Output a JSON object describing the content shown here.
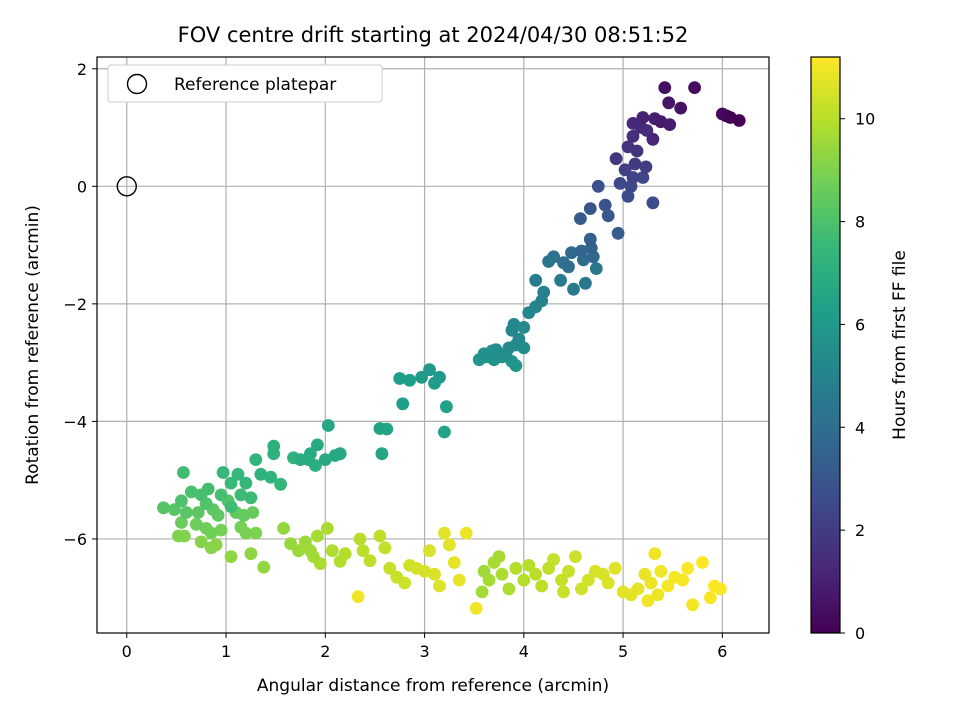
{
  "chart_data": {
    "type": "scatter",
    "title": "FOV centre drift starting at 2024/04/30 08:51:52",
    "xlabel": "Angular distance from reference (arcmin)",
    "ylabel": "Rotation from reference (arcmin)",
    "xlim": [
      -0.3,
      6.47
    ],
    "ylim": [
      -7.6,
      2.2
    ],
    "xticks": [
      0,
      1,
      2,
      3,
      4,
      5,
      6
    ],
    "yticks": [
      -6,
      -4,
      -2,
      0,
      2
    ],
    "grid": true,
    "legend": {
      "placement": "top-left",
      "entries": [
        "Reference platepar"
      ]
    },
    "reference_point": {
      "x": 0,
      "y": 0
    },
    "colorbar": {
      "label": "Hours from first FF file",
      "range": [
        0,
        11.2
      ],
      "ticks": [
        0,
        2,
        4,
        6,
        8,
        10
      ],
      "colormap": "viridis"
    },
    "colormap_stops": [
      "#440154",
      "#482878",
      "#3e4989",
      "#31688e",
      "#26828e",
      "#1f9e89",
      "#35b779",
      "#6ece58",
      "#b5de2b",
      "#fde725"
    ],
    "points": [
      [
        6.17,
        1.12,
        0.0
      ],
      [
        6.08,
        1.17,
        0.08
      ],
      [
        6.04,
        1.2,
        0.15
      ],
      [
        6.0,
        1.23,
        0.22
      ],
      [
        5.72,
        1.68,
        0.35
      ],
      [
        5.42,
        1.68,
        0.45
      ],
      [
        5.58,
        1.33,
        0.55
      ],
      [
        5.46,
        1.42,
        0.65
      ],
      [
        5.38,
        1.1,
        0.75
      ],
      [
        5.47,
        1.05,
        0.85
      ],
      [
        5.32,
        1.15,
        0.95
      ],
      [
        5.2,
        1.17,
        1.05
      ],
      [
        5.3,
        0.8,
        1.15
      ],
      [
        5.1,
        1.07,
        1.25
      ],
      [
        5.18,
        1.0,
        1.35
      ],
      [
        5.24,
        0.95,
        1.45
      ],
      [
        5.1,
        0.85,
        1.55
      ],
      [
        5.14,
        0.6,
        1.65
      ],
      [
        5.05,
        0.67,
        1.75
      ],
      [
        4.93,
        0.47,
        1.85
      ],
      [
        5.12,
        0.38,
        1.95
      ],
      [
        5.23,
        0.33,
        2.05
      ],
      [
        5.02,
        0.28,
        2.15
      ],
      [
        5.1,
        0.15,
        2.25
      ],
      [
        5.2,
        0.15,
        2.35
      ],
      [
        5.08,
        0.0,
        2.45
      ],
      [
        4.97,
        0.05,
        2.5
      ],
      [
        5.05,
        -0.17,
        2.6
      ],
      [
        5.3,
        -0.28,
        2.7
      ],
      [
        4.75,
        0.0,
        2.8
      ],
      [
        4.82,
        -0.32,
        2.9
      ],
      [
        4.67,
        -0.38,
        3.0
      ],
      [
        4.85,
        -0.5,
        3.1
      ],
      [
        4.57,
        -0.55,
        3.2
      ],
      [
        4.95,
        -0.8,
        3.3
      ],
      [
        4.67,
        -0.9,
        3.4
      ],
      [
        4.68,
        -1.05,
        3.5
      ],
      [
        4.58,
        -1.1,
        3.6
      ],
      [
        4.7,
        -1.2,
        3.7
      ],
      [
        4.48,
        -1.13,
        3.8
      ],
      [
        4.6,
        -1.25,
        3.9
      ],
      [
        4.4,
        -1.3,
        4.0
      ],
      [
        4.45,
        -1.37,
        4.1
      ],
      [
        4.3,
        -1.2,
        4.2
      ],
      [
        4.25,
        -1.28,
        4.3
      ],
      [
        4.73,
        -1.4,
        4.4
      ],
      [
        4.62,
        -1.65,
        4.5
      ],
      [
        4.37,
        -1.6,
        4.6
      ],
      [
        4.5,
        -1.75,
        4.7
      ],
      [
        4.12,
        -1.6,
        4.8
      ],
      [
        4.2,
        -1.8,
        4.9
      ],
      [
        4.18,
        -1.95,
        5.0
      ],
      [
        4.12,
        -2.05,
        5.05
      ],
      [
        4.05,
        -2.15,
        5.1
      ],
      [
        3.88,
        -2.45,
        5.15
      ],
      [
        3.9,
        -2.35,
        5.2
      ],
      [
        4.0,
        -2.4,
        5.25
      ],
      [
        3.95,
        -2.6,
        5.3
      ],
      [
        3.92,
        -2.7,
        5.35
      ],
      [
        3.85,
        -2.75,
        5.4
      ],
      [
        4.0,
        -2.75,
        5.45
      ],
      [
        3.82,
        -2.85,
        5.5
      ],
      [
        3.72,
        -2.78,
        5.55
      ],
      [
        3.68,
        -2.8,
        5.6
      ],
      [
        3.6,
        -2.85,
        5.65
      ],
      [
        3.78,
        -2.9,
        5.7
      ],
      [
        3.7,
        -2.95,
        5.75
      ],
      [
        3.55,
        -2.95,
        5.8
      ],
      [
        3.88,
        -2.98,
        5.85
      ],
      [
        3.92,
        -3.05,
        5.9
      ],
      [
        3.62,
        -2.9,
        5.95
      ],
      [
        3.05,
        -3.12,
        6.0
      ],
      [
        3.15,
        -3.25,
        6.05
      ],
      [
        3.1,
        -3.35,
        6.1
      ],
      [
        2.97,
        -3.25,
        6.15
      ],
      [
        2.75,
        -3.27,
        6.2
      ],
      [
        2.85,
        -3.3,
        6.25
      ],
      [
        2.78,
        -3.7,
        6.3
      ],
      [
        3.22,
        -3.75,
        6.35
      ],
      [
        3.2,
        -4.18,
        6.4
      ],
      [
        2.55,
        -4.12,
        6.45
      ],
      [
        2.62,
        -4.13,
        6.5
      ],
      [
        2.57,
        -4.55,
        6.55
      ],
      [
        2.03,
        -4.07,
        6.6
      ],
      [
        2.15,
        -4.55,
        6.65
      ],
      [
        2.1,
        -4.58,
        6.7
      ],
      [
        1.92,
        -4.4,
        6.75
      ],
      [
        2.0,
        -4.65,
        6.8
      ],
      [
        1.85,
        -4.55,
        6.85
      ],
      [
        1.83,
        -4.65,
        6.9
      ],
      [
        1.75,
        -4.65,
        6.95
      ],
      [
        1.9,
        -4.75,
        7.0
      ],
      [
        1.48,
        -4.42,
        7.05
      ],
      [
        1.68,
        -4.62,
        7.1
      ],
      [
        1.48,
        -4.55,
        7.15
      ],
      [
        1.35,
        -4.9,
        7.2
      ],
      [
        1.45,
        -4.95,
        7.25
      ],
      [
        1.3,
        -4.65,
        7.3
      ],
      [
        1.55,
        -5.07,
        7.35
      ],
      [
        1.2,
        -5.05,
        7.4
      ],
      [
        1.12,
        -4.9,
        7.45
      ],
      [
        0.97,
        -4.87,
        7.5
      ],
      [
        1.05,
        -5.05,
        7.55
      ],
      [
        1.25,
        -5.3,
        7.6
      ],
      [
        1.15,
        -5.25,
        7.65
      ],
      [
        1.05,
        -5.45,
        7.7
      ],
      [
        0.57,
        -4.87,
        7.75
      ],
      [
        0.82,
        -5.15,
        7.8
      ],
      [
        0.95,
        -5.25,
        7.85
      ],
      [
        0.75,
        -5.25,
        7.9
      ],
      [
        0.65,
        -5.2,
        7.95
      ],
      [
        0.55,
        -5.35,
        8.0
      ],
      [
        0.8,
        -5.4,
        8.05
      ],
      [
        1.02,
        -5.35,
        8.1
      ],
      [
        0.37,
        -5.47,
        8.15
      ],
      [
        0.48,
        -5.5,
        8.2
      ],
      [
        0.6,
        -5.55,
        8.25
      ],
      [
        0.72,
        -5.55,
        8.3
      ],
      [
        0.87,
        -5.5,
        8.35
      ],
      [
        0.92,
        -5.6,
        8.4
      ],
      [
        1.1,
        -5.55,
        8.45
      ],
      [
        1.18,
        -5.6,
        8.5
      ],
      [
        1.27,
        -5.55,
        8.55
      ],
      [
        0.55,
        -5.72,
        8.6
      ],
      [
        0.7,
        -5.75,
        8.65
      ],
      [
        0.8,
        -5.82,
        8.7
      ],
      [
        0.85,
        -5.9,
        8.75
      ],
      [
        0.95,
        -5.85,
        8.8
      ],
      [
        1.15,
        -5.8,
        8.85
      ],
      [
        1.2,
        -5.9,
        8.9
      ],
      [
        1.3,
        -5.9,
        8.95
      ],
      [
        0.52,
        -5.95,
        9.0
      ],
      [
        0.58,
        -5.95,
        9.05
      ],
      [
        0.75,
        -6.05,
        9.1
      ],
      [
        0.85,
        -6.15,
        9.15
      ],
      [
        0.9,
        -6.1,
        9.2
      ],
      [
        1.25,
        -6.25,
        9.25
      ],
      [
        1.05,
        -6.3,
        9.3
      ],
      [
        1.38,
        -6.48,
        9.35
      ],
      [
        1.58,
        -5.82,
        9.4
      ],
      [
        1.65,
        -6.08,
        9.45
      ],
      [
        1.73,
        -6.2,
        9.5
      ],
      [
        1.8,
        -6.05,
        9.55
      ],
      [
        1.85,
        -6.2,
        9.6
      ],
      [
        1.88,
        -6.3,
        9.65
      ],
      [
        1.92,
        -5.95,
        9.7
      ],
      [
        2.02,
        -5.82,
        9.75
      ],
      [
        1.95,
        -6.42,
        9.8
      ],
      [
        2.07,
        -6.2,
        9.85
      ],
      [
        2.15,
        -6.38,
        9.9
      ],
      [
        2.2,
        -6.25,
        9.95
      ],
      [
        2.35,
        -6.0,
        10.0
      ],
      [
        2.38,
        -6.2,
        10.05
      ],
      [
        2.45,
        -6.37,
        10.1
      ],
      [
        2.55,
        -5.95,
        10.15
      ],
      [
        2.6,
        -6.15,
        10.2
      ],
      [
        2.65,
        -6.5,
        10.25
      ],
      [
        2.72,
        -6.65,
        10.3
      ],
      [
        2.8,
        -6.75,
        10.35
      ],
      [
        2.85,
        -6.45,
        10.4
      ],
      [
        2.92,
        -6.5,
        10.45
      ],
      [
        3.0,
        -6.55,
        10.5
      ],
      [
        3.05,
        -6.2,
        10.55
      ],
      [
        3.1,
        -6.6,
        10.6
      ],
      [
        3.15,
        -6.8,
        10.65
      ],
      [
        3.2,
        -5.9,
        10.7
      ],
      [
        3.25,
        -6.1,
        10.75
      ],
      [
        3.3,
        -6.4,
        10.8
      ],
      [
        3.35,
        -6.7,
        10.85
      ],
      [
        3.42,
        -5.9,
        10.9
      ],
      [
        2.33,
        -6.98,
        10.95
      ],
      [
        3.52,
        -7.18,
        11.0
      ],
      [
        5.7,
        -7.12,
        11.05
      ],
      [
        5.88,
        -7.0,
        11.1
      ],
      [
        5.98,
        -6.85,
        11.15
      ]
    ],
    "filler_points": [
      [
        3.6,
        -6.55,
        9.6
      ],
      [
        3.65,
        -6.7,
        9.7
      ],
      [
        3.7,
        -6.4,
        9.75
      ],
      [
        3.78,
        -6.6,
        9.8
      ],
      [
        3.85,
        -6.85,
        9.85
      ],
      [
        3.92,
        -6.5,
        9.9
      ],
      [
        4.0,
        -6.7,
        9.95
      ],
      [
        4.05,
        -6.45,
        10.0
      ],
      [
        4.12,
        -6.6,
        10.05
      ],
      [
        4.18,
        -6.8,
        10.1
      ],
      [
        4.25,
        -6.5,
        10.15
      ],
      [
        4.3,
        -6.35,
        10.2
      ],
      [
        4.38,
        -6.7,
        10.25
      ],
      [
        4.45,
        -6.55,
        10.3
      ],
      [
        4.52,
        -6.3,
        10.35
      ],
      [
        4.58,
        -6.85,
        10.4
      ],
      [
        4.65,
        -6.7,
        10.45
      ],
      [
        4.72,
        -6.55,
        10.5
      ],
      [
        4.8,
        -6.6,
        10.55
      ],
      [
        4.85,
        -6.75,
        10.6
      ],
      [
        4.92,
        -6.5,
        10.65
      ],
      [
        5.0,
        -6.9,
        10.7
      ],
      [
        5.08,
        -6.95,
        10.75
      ],
      [
        5.15,
        -6.85,
        10.8
      ],
      [
        5.22,
        -6.6,
        10.85
      ],
      [
        5.28,
        -6.75,
        10.9
      ],
      [
        5.32,
        -6.25,
        10.95
      ],
      [
        5.38,
        -6.55,
        11.0
      ],
      [
        5.45,
        -6.8,
        11.05
      ],
      [
        5.52,
        -6.65,
        11.1
      ],
      [
        5.6,
        -6.7,
        11.12
      ],
      [
        5.65,
        -6.5,
        11.15
      ],
      [
        5.8,
        -6.4,
        11.18
      ],
      [
        5.92,
        -6.8,
        11.2
      ],
      [
        3.58,
        -6.9,
        9.65
      ],
      [
        3.75,
        -6.3,
        9.7
      ],
      [
        4.4,
        -6.9,
        10.3
      ],
      [
        5.25,
        -7.05,
        11.0
      ],
      [
        5.35,
        -6.95,
        10.9
      ]
    ]
  }
}
